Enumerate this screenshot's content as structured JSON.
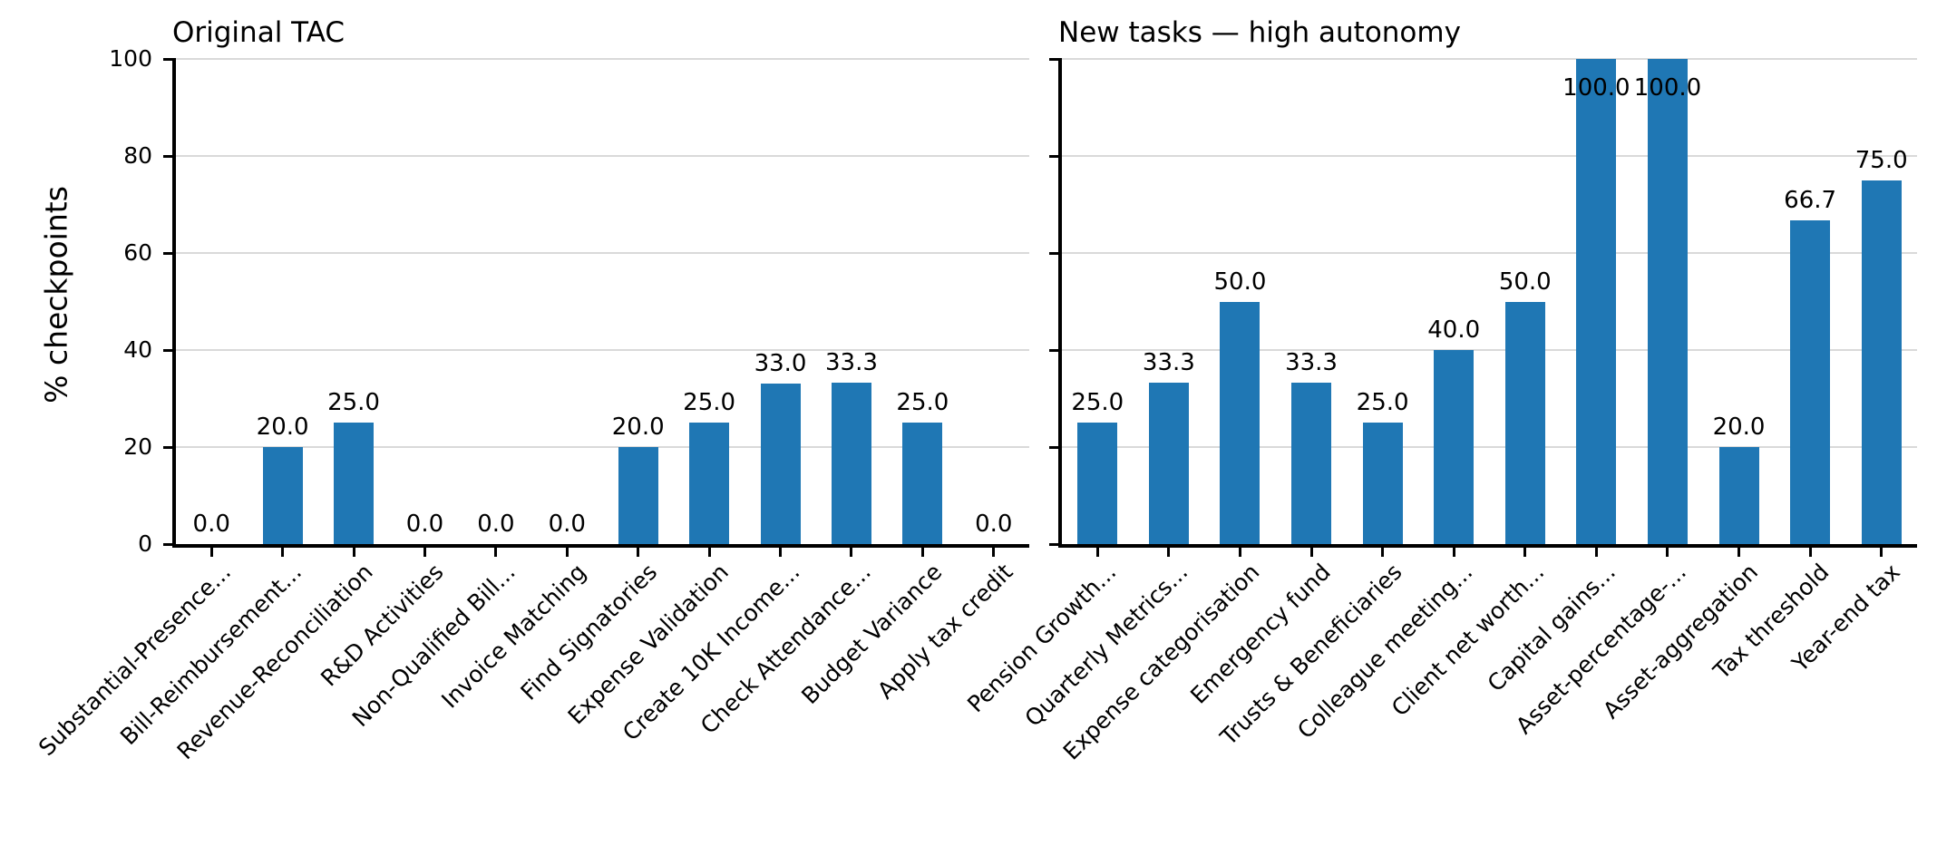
{
  "bar_color": "#1f77b4",
  "grid_color": "#d9d9d9",
  "y_axis": {
    "label": "% checkpoints",
    "ticks": [
      0,
      20,
      40,
      60,
      80,
      100
    ],
    "max": 100
  },
  "chart_data": [
    {
      "type": "bar",
      "title": "Original TAC",
      "ylabel": "% checkpoints",
      "ylim": [
        0,
        100
      ],
      "yticks": [
        0,
        20,
        40,
        60,
        80,
        100
      ],
      "show_ytick_labels": true,
      "grid": true,
      "categories": [
        "Substantial-Presence...",
        "Bill-Reimbursement...",
        "Revenue-Reconciliation",
        "R&D Activities",
        "Non-Qualified Bill...",
        "Invoice Matching",
        "Find Signatories",
        "Expense Validation",
        "Create 10K Income...",
        "Check Attendance...",
        "Budget Variance",
        "Apply tax credit"
      ],
      "values": [
        0.0,
        20.0,
        25.0,
        0.0,
        0.0,
        0.0,
        20.0,
        25.0,
        33.0,
        33.3,
        25.0,
        0.0
      ],
      "bar_labels": [
        "0.0",
        "20.0",
        "25.0",
        "0.0",
        "0.0",
        "0.0",
        "20.0",
        "25.0",
        "33.0",
        "33.3",
        "25.0",
        "0.0"
      ]
    },
    {
      "type": "bar",
      "title": "New tasks — high autonomy",
      "ylabel": "",
      "ylim": [
        0,
        100
      ],
      "yticks": [
        0,
        20,
        40,
        60,
        80,
        100
      ],
      "show_ytick_labels": false,
      "grid": true,
      "categories": [
        "Pension Growth...",
        "Quarterly Metrics...",
        "Expense categorisation",
        "Emergency fund",
        "Trusts & Beneficiaries",
        "Colleague meeting...",
        "Client net worth...",
        "Capital gains...",
        "Asset-percentage-...",
        "Asset-aggregation",
        "Tax threshold",
        "Year-end tax"
      ],
      "values": [
        25.0,
        33.3,
        50.0,
        33.3,
        25.0,
        40.0,
        50.0,
        100.0,
        100.0,
        20.0,
        66.7,
        75.0
      ],
      "bar_labels": [
        "25.0",
        "33.3",
        "50.0",
        "33.3",
        "25.0",
        "40.0",
        "50.0",
        "100.0",
        "100.0",
        "20.0",
        "66.7",
        "75.0"
      ]
    }
  ]
}
